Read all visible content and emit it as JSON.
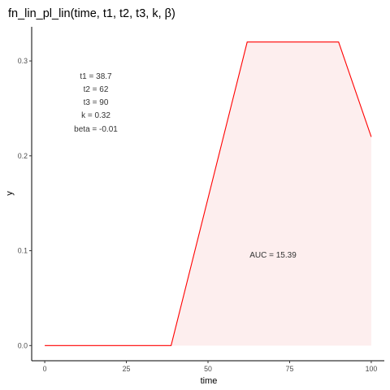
{
  "chart_data": {
    "type": "area",
    "title": "fn_lin_pl_lin(time, t1, t2, t3, k, β)",
    "xlabel": "time",
    "ylabel": "y",
    "xlim": [
      -4,
      104
    ],
    "ylim": [
      -0.016,
      0.336
    ],
    "x_ticks": [
      0,
      25,
      50,
      75,
      100
    ],
    "x_tick_labels": [
      "0",
      "25",
      "50",
      "75",
      "100"
    ],
    "y_ticks": [
      0.0,
      0.1,
      0.2,
      0.3
    ],
    "y_tick_labels": [
      "0.0",
      "0.1",
      "0.2",
      "0.3"
    ],
    "grid": false,
    "series": [
      {
        "color": "#ff0000",
        "x": [
          0,
          38.7,
          62,
          90,
          100
        ],
        "values": [
          0,
          0,
          0.32,
          0.32,
          0.22
        ]
      }
    ],
    "area": {
      "color": "#fdeeee",
      "x": [
        38.7,
        62,
        90,
        100
      ],
      "values": [
        0,
        0.32,
        0.32,
        0.22
      ]
    },
    "annotations": {
      "params": [
        "t1 = 38.7",
        "t2 = 62",
        "t3 = 90",
        "k = 0.32",
        "beta = -0.01"
      ],
      "auc": "AUC = 15.39"
    }
  }
}
